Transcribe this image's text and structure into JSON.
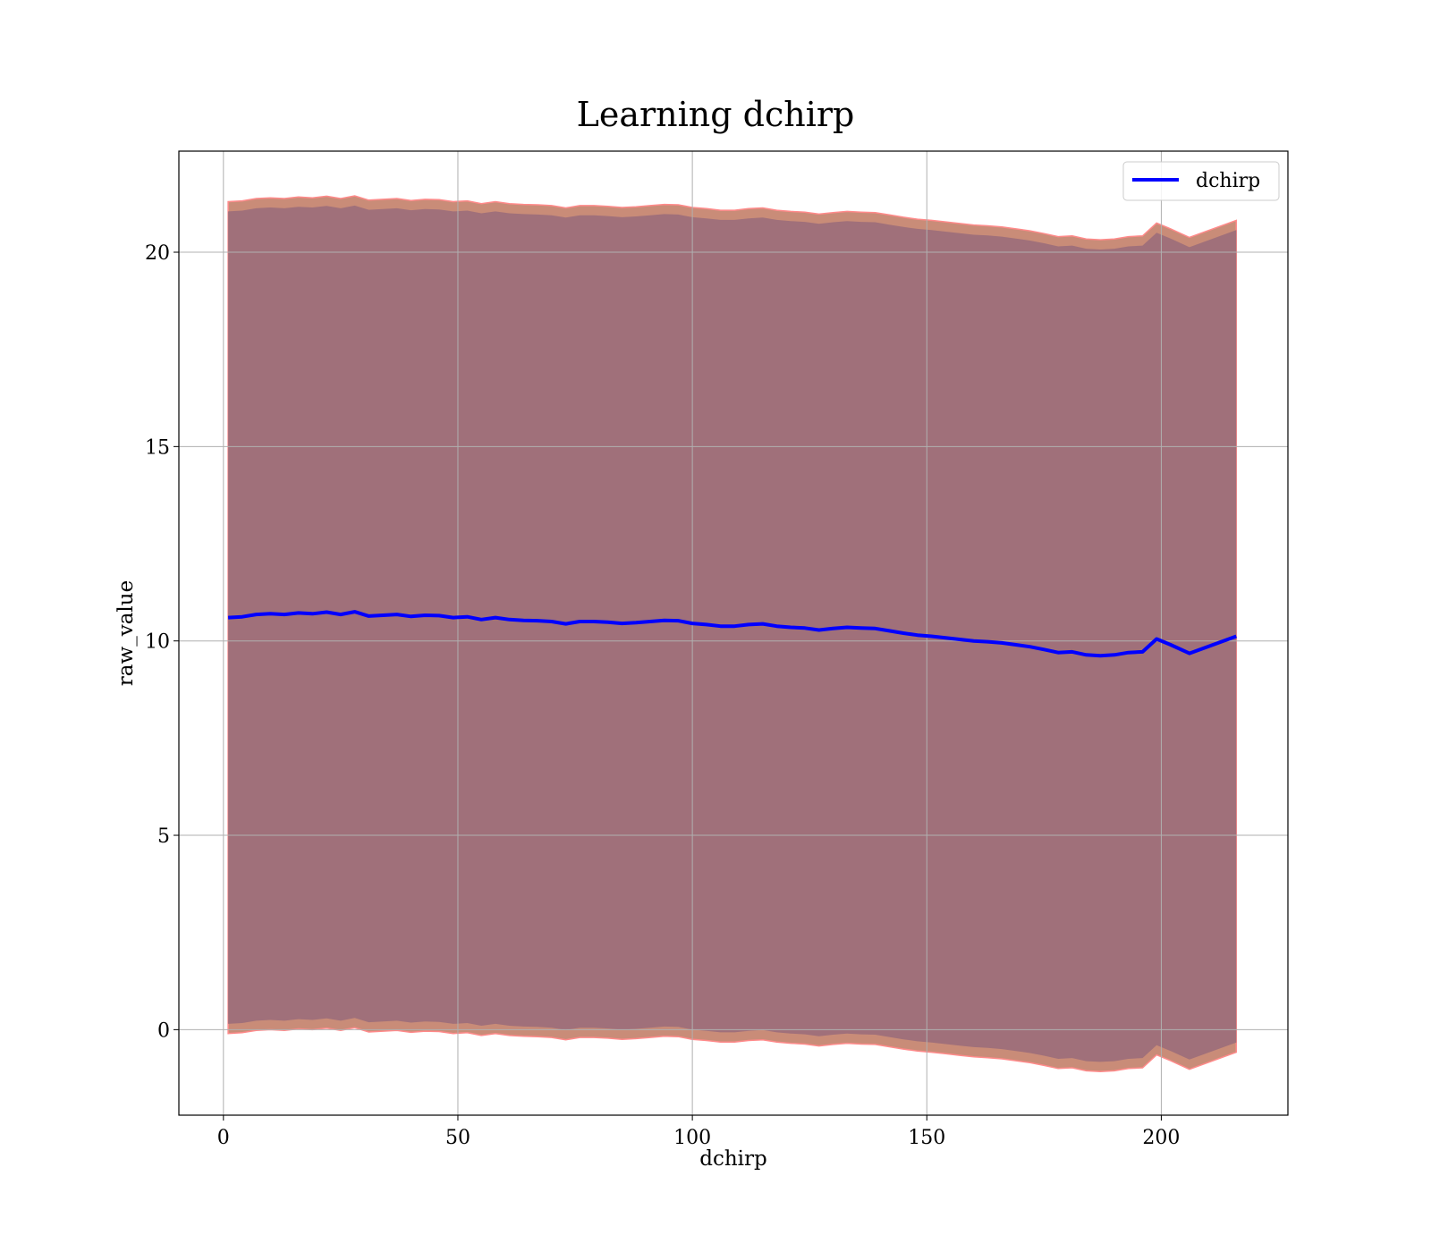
{
  "chart_data": {
    "type": "line",
    "title": "Learning dchirp",
    "xlabel": "dchirp",
    "ylabel": "raw_value",
    "xlim": [
      -9.5,
      227
    ],
    "ylim": [
      -2.2,
      22.6
    ],
    "xticks": [
      "0",
      "50",
      "100",
      "150",
      "200"
    ],
    "yticks": [
      "0",
      "5",
      "10",
      "15",
      "20"
    ],
    "grid": true,
    "legend": {
      "position": "top-right"
    },
    "series": [
      {
        "name": "dchirp",
        "color": "#0000ff",
        "x": [
          1,
          4,
          7,
          10,
          13,
          16,
          19,
          22,
          25,
          28,
          31,
          34,
          37,
          40,
          43,
          46,
          49,
          52,
          55,
          58,
          61,
          64,
          67,
          70,
          73,
          76,
          79,
          82,
          85,
          88,
          91,
          94,
          97,
          100,
          103,
          106,
          109,
          112,
          115,
          118,
          121,
          124,
          127,
          130,
          133,
          136,
          139,
          142,
          145,
          148,
          151,
          154,
          157,
          160,
          163,
          166,
          169,
          172,
          175,
          178,
          181,
          184,
          187,
          190,
          193,
          196,
          199,
          202,
          206,
          216
        ],
        "y": [
          10.6,
          10.62,
          10.68,
          10.7,
          10.68,
          10.72,
          10.7,
          10.74,
          10.68,
          10.75,
          10.64,
          10.66,
          10.68,
          10.63,
          10.66,
          10.65,
          10.6,
          10.62,
          10.55,
          10.6,
          10.55,
          10.53,
          10.52,
          10.5,
          10.44,
          10.5,
          10.5,
          10.48,
          10.45,
          10.47,
          10.5,
          10.53,
          10.52,
          10.45,
          10.42,
          10.38,
          10.38,
          10.42,
          10.44,
          10.38,
          10.35,
          10.33,
          10.28,
          10.32,
          10.35,
          10.33,
          10.32,
          10.26,
          10.2,
          10.15,
          10.12,
          10.08,
          10.04,
          10.0,
          9.98,
          9.95,
          9.9,
          9.85,
          9.78,
          9.7,
          9.72,
          9.64,
          9.62,
          9.64,
          9.7,
          9.72,
          10.05,
          9.9,
          9.68,
          10.12
        ],
        "band_inner_halfwidth": 10.45,
        "band_outer_halfwidth": 10.7,
        "band_color": "#a0707a",
        "band_outer_color": "#c98c78"
      }
    ]
  }
}
